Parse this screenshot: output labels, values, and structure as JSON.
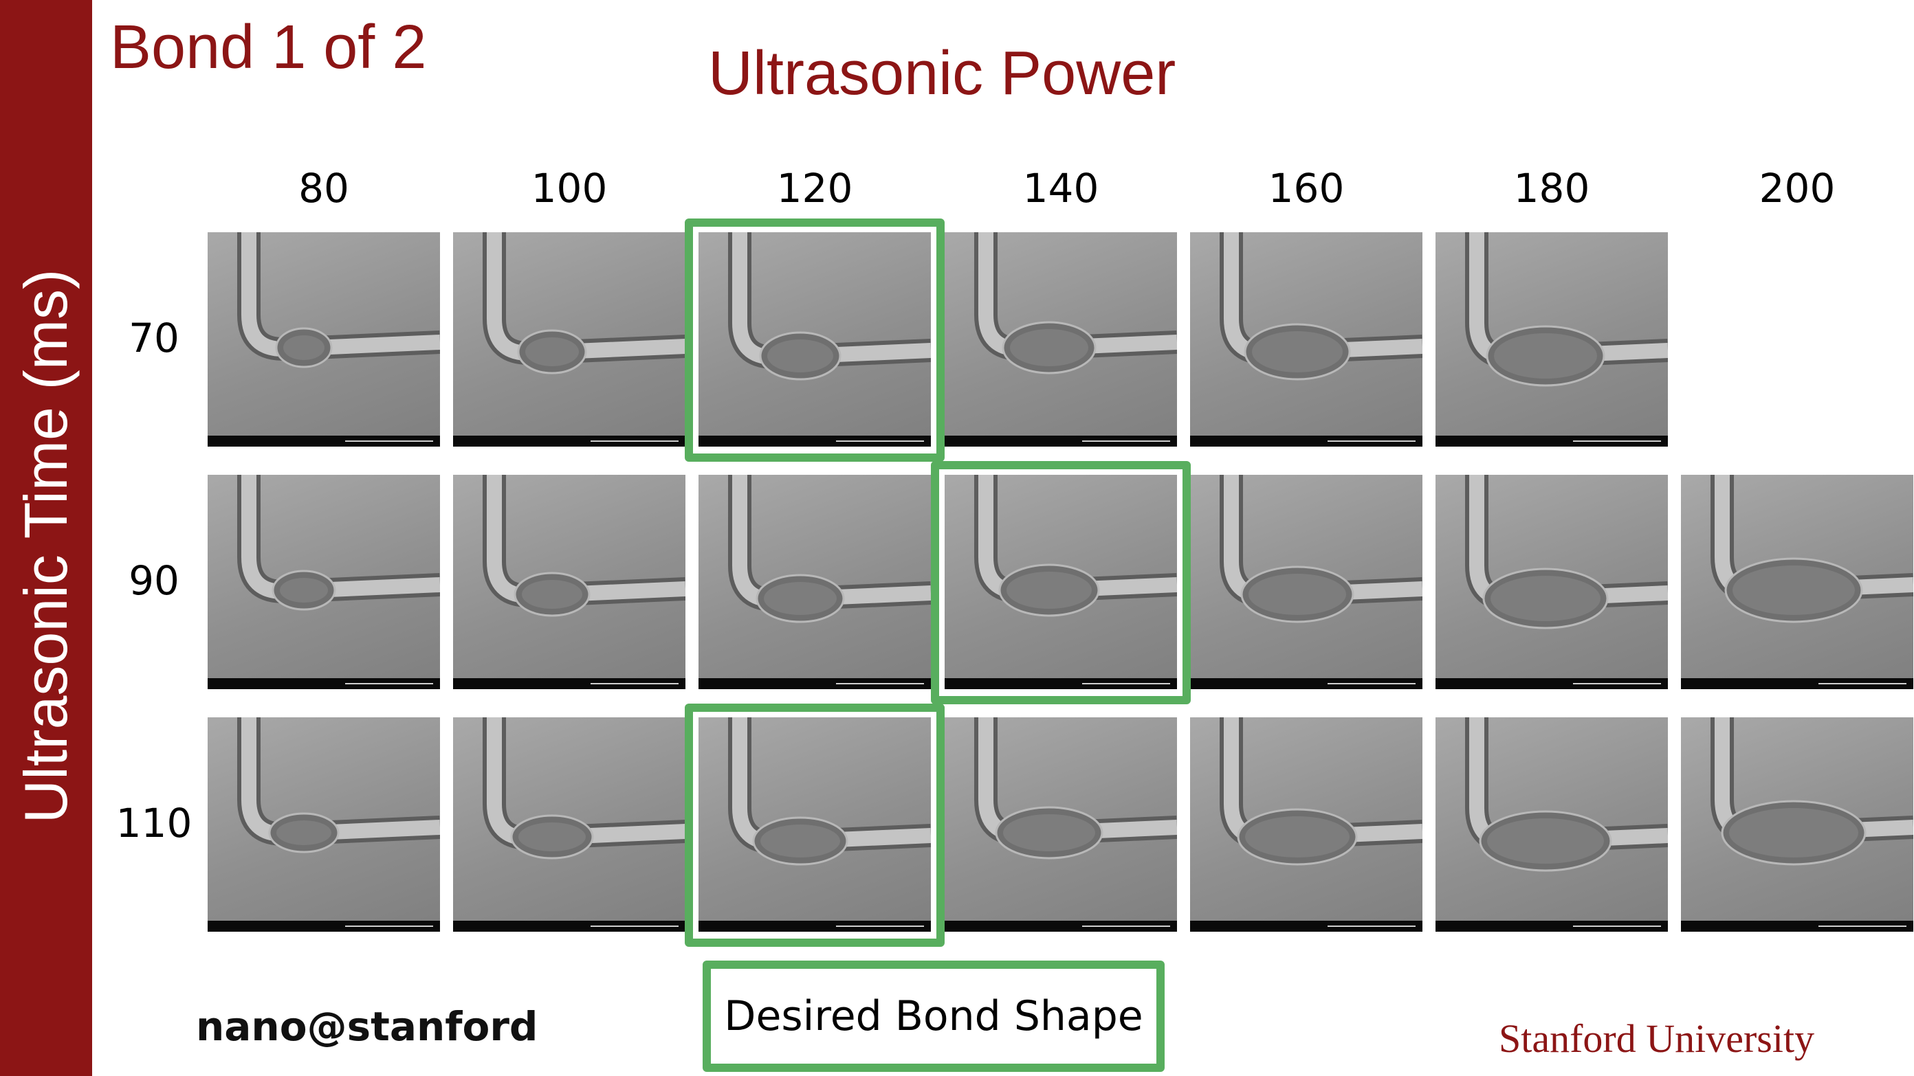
{
  "slide": {
    "bond_title": "Bond 1 of 2",
    "x_axis_title": "Ultrasonic Power",
    "y_axis_title": "Ultrasonic Time (ms)",
    "power_levels": [
      "80",
      "100",
      "120",
      "140",
      "160",
      "180",
      "200"
    ],
    "time_levels": [
      "70",
      "90",
      "110"
    ],
    "grid": [
      {
        "time": "70",
        "images": [
          true,
          true,
          true,
          true,
          true,
          true,
          false
        ]
      },
      {
        "time": "90",
        "images": [
          true,
          true,
          true,
          true,
          true,
          true,
          true
        ]
      },
      {
        "time": "110",
        "images": [
          true,
          true,
          true,
          true,
          true,
          true,
          true
        ]
      }
    ],
    "desired_bond_shape": [
      {
        "time": "70",
        "power": "120"
      },
      {
        "time": "90",
        "power": "140"
      },
      {
        "time": "110",
        "power": "120"
      }
    ],
    "desired_label": "Desired Bond Shape",
    "footer_left": "nano@stanford",
    "footer_right": "Stanford University"
  },
  "colors": {
    "brand_red": "#8c1515",
    "highlight_green": "#58ae5e",
    "image_gray": "#8f8f8f"
  },
  "icons": [
    "sem-micrograph"
  ]
}
